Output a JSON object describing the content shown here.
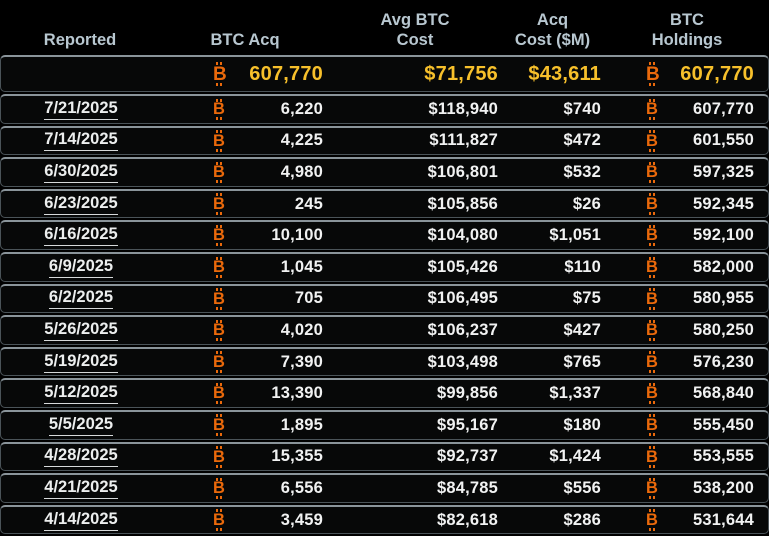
{
  "table": {
    "columns": [
      {
        "label": "Reported"
      },
      {
        "label": "BTC Acq"
      },
      {
        "label": "Avg BTC\nCost"
      },
      {
        "label": "Acq\nCost ($M)"
      },
      {
        "label": "BTC\nHoldings"
      }
    ],
    "totals_row": {
      "btc_acq": "607,770",
      "avg_btc_cost": "$71,756",
      "acq_cost_m": "$43,611",
      "btc_holdings": "607,770"
    },
    "rows": [
      {
        "date": "7/21/2025",
        "btc_acq": "6,220",
        "avg_btc_cost": "$118,940",
        "acq_cost_m": "$740",
        "btc_holdings": "607,770"
      },
      {
        "date": "7/14/2025",
        "btc_acq": "4,225",
        "avg_btc_cost": "$111,827",
        "acq_cost_m": "$472",
        "btc_holdings": "601,550"
      },
      {
        "date": "6/30/2025",
        "btc_acq": "4,980",
        "avg_btc_cost": "$106,801",
        "acq_cost_m": "$532",
        "btc_holdings": "597,325"
      },
      {
        "date": "6/23/2025",
        "btc_acq": "245",
        "avg_btc_cost": "$105,856",
        "acq_cost_m": "$26",
        "btc_holdings": "592,345"
      },
      {
        "date": "6/16/2025",
        "btc_acq": "10,100",
        "avg_btc_cost": "$104,080",
        "acq_cost_m": "$1,051",
        "btc_holdings": "592,100"
      },
      {
        "date": "6/9/2025",
        "btc_acq": "1,045",
        "avg_btc_cost": "$105,426",
        "acq_cost_m": "$110",
        "btc_holdings": "582,000"
      },
      {
        "date": "6/2/2025",
        "btc_acq": "705",
        "avg_btc_cost": "$106,495",
        "acq_cost_m": "$75",
        "btc_holdings": "580,955"
      },
      {
        "date": "5/26/2025",
        "btc_acq": "4,020",
        "avg_btc_cost": "$106,237",
        "acq_cost_m": "$427",
        "btc_holdings": "580,250"
      },
      {
        "date": "5/19/2025",
        "btc_acq": "7,390",
        "avg_btc_cost": "$103,498",
        "acq_cost_m": "$765",
        "btc_holdings": "576,230"
      },
      {
        "date": "5/12/2025",
        "btc_acq": "13,390",
        "avg_btc_cost": "$99,856",
        "acq_cost_m": "$1,337",
        "btc_holdings": "568,840"
      },
      {
        "date": "5/5/2025",
        "btc_acq": "1,895",
        "avg_btc_cost": "$95,167",
        "acq_cost_m": "$180",
        "btc_holdings": "555,450"
      },
      {
        "date": "4/28/2025",
        "btc_acq": "15,355",
        "avg_btc_cost": "$92,737",
        "acq_cost_m": "$1,424",
        "btc_holdings": "553,555"
      },
      {
        "date": "4/21/2025",
        "btc_acq": "6,556",
        "avg_btc_cost": "$84,785",
        "acq_cost_m": "$556",
        "btc_holdings": "538,200"
      },
      {
        "date": "4/14/2025",
        "btc_acq": "3,459",
        "avg_btc_cost": "$82,618",
        "acq_cost_m": "$286",
        "btc_holdings": "531,644"
      }
    ]
  },
  "icons": {
    "bitcoin_letter": "B"
  },
  "colors": {
    "background": "#000000",
    "header_text": "#b8c7d0",
    "row_separator": "#8a949a",
    "accent_gold": "#f7c02b",
    "bitcoin_orange": "#ea690b",
    "text_primary": "#f1f2f2"
  }
}
